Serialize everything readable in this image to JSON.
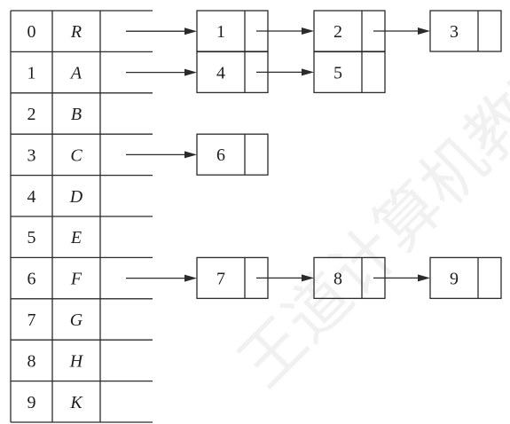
{
  "watermark": "王道计算机教育",
  "vertices": [
    {
      "index": "0",
      "label": "R",
      "adj": [
        "1",
        "2",
        "3"
      ]
    },
    {
      "index": "1",
      "label": "A",
      "adj": [
        "4",
        "5"
      ]
    },
    {
      "index": "2",
      "label": "B",
      "adj": []
    },
    {
      "index": "3",
      "label": "C",
      "adj": [
        "6"
      ]
    },
    {
      "index": "4",
      "label": "D",
      "adj": []
    },
    {
      "index": "5",
      "label": "E",
      "adj": []
    },
    {
      "index": "6",
      "label": "F",
      "adj": [
        "7",
        "8",
        "9"
      ]
    },
    {
      "index": "7",
      "label": "G",
      "adj": []
    },
    {
      "index": "8",
      "label": "H",
      "adj": []
    },
    {
      "index": "9",
      "label": "K",
      "adj": []
    }
  ]
}
